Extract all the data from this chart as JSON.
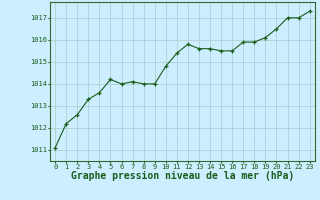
{
  "x": [
    0,
    1,
    2,
    3,
    4,
    5,
    6,
    7,
    8,
    9,
    10,
    11,
    12,
    13,
    14,
    15,
    16,
    17,
    18,
    19,
    20,
    21,
    22,
    23
  ],
  "y": [
    1011.1,
    1012.2,
    1012.6,
    1013.3,
    1013.6,
    1014.2,
    1014.0,
    1014.1,
    1014.0,
    1014.0,
    1014.8,
    1015.4,
    1015.8,
    1015.6,
    1015.6,
    1015.5,
    1015.5,
    1015.9,
    1015.9,
    1016.1,
    1016.5,
    1017.0,
    1017.0,
    1017.3
  ],
  "line_color": "#1a5c1a",
  "marker": "+",
  "marker_color": "#1a5c1a",
  "bg_color": "#cceeff",
  "grid_color": "#aacccc",
  "xlabel": "Graphe pression niveau de la mer (hPa)",
  "xlabel_color": "#1a5c1a",
  "ylabel_ticks": [
    1011,
    1012,
    1013,
    1014,
    1015,
    1016,
    1017
  ],
  "xtick_labels": [
    "0",
    "1",
    "2",
    "3",
    "4",
    "5",
    "6",
    "7",
    "8",
    "9",
    "10",
    "11",
    "12",
    "13",
    "14",
    "15",
    "16",
    "17",
    "18",
    "19",
    "20",
    "21",
    "22",
    "23"
  ],
  "ylim": [
    1010.5,
    1017.7
  ],
  "xlim": [
    -0.5,
    23.5
  ],
  "tick_color": "#1a5c1a",
  "tick_fontsize": 5.0,
  "xlabel_fontsize": 7.0,
  "spine_color": "#336633"
}
